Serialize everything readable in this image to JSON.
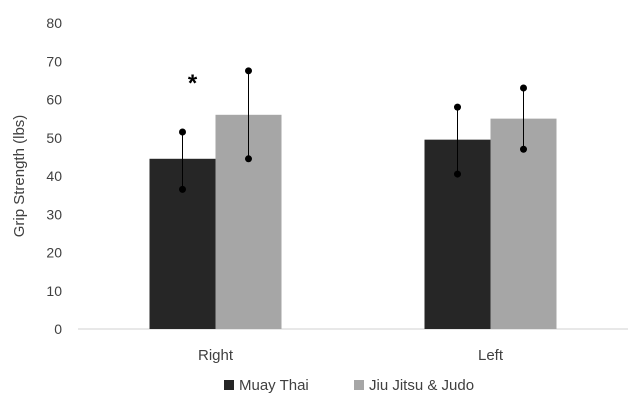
{
  "chart_data": {
    "type": "bar",
    "ylabel": "Grip Strength (lbs)",
    "xlabel": "",
    "ylim": [
      0,
      80
    ],
    "yticks": [
      0,
      10,
      20,
      30,
      40,
      50,
      60,
      70,
      80
    ],
    "grid": false,
    "legend_position": "bottom",
    "categories": [
      "Right",
      "Left"
    ],
    "series": [
      {
        "name": "Muay Thai",
        "color": "#262626",
        "values": [
          44.5,
          49.5
        ],
        "error_low": [
          36.5,
          40.5
        ],
        "error_high": [
          51.5,
          58.0
        ]
      },
      {
        "name": "Jiu Jitsu & Judo",
        "color": "#a6a6a6",
        "values": [
          56.0,
          55.0
        ],
        "error_low": [
          44.5,
          47.0
        ],
        "error_high": [
          67.5,
          63.0
        ]
      }
    ],
    "annotations": [
      {
        "text": "*",
        "category": "Right",
        "series": "Jiu Jitsu & Judo"
      }
    ]
  }
}
